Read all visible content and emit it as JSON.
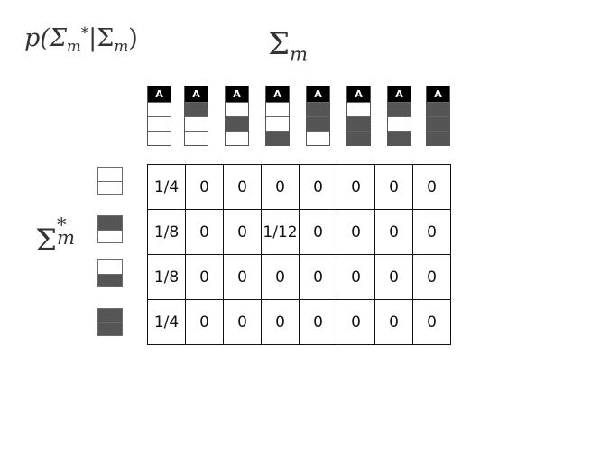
{
  "title": {
    "prefix": "p(Σ",
    "star_sub": "m",
    "star": "*",
    "middle": "|Σ",
    "mid_sub": "m",
    "suffix": ")"
  },
  "top_label": {
    "base": "Σ",
    "sub": "m"
  },
  "side_label": {
    "base": "Σ",
    "sup": "*",
    "sub": "m"
  },
  "column_configs": [
    {
      "cap": "A",
      "slots": [
        false,
        false,
        false
      ]
    },
    {
      "cap": "A",
      "slots": [
        true,
        false,
        false
      ]
    },
    {
      "cap": "A",
      "slots": [
        false,
        true,
        false
      ]
    },
    {
      "cap": "A",
      "slots": [
        false,
        false,
        true
      ]
    },
    {
      "cap": "A",
      "slots": [
        true,
        true,
        false
      ]
    },
    {
      "cap": "A",
      "slots": [
        false,
        true,
        true
      ]
    },
    {
      "cap": "A",
      "slots": [
        true,
        false,
        true
      ]
    },
    {
      "cap": "A",
      "slots": [
        true,
        true,
        true
      ]
    }
  ],
  "row_configs": [
    [
      false,
      false
    ],
    [
      true,
      false
    ],
    [
      false,
      true
    ],
    [
      true,
      true
    ]
  ],
  "table": [
    [
      "1/4",
      "0",
      "0",
      "0",
      "0",
      "0",
      "0",
      "0"
    ],
    [
      "1/8",
      "0",
      "0",
      "1/12",
      "0",
      "0",
      "0",
      "0"
    ],
    [
      "1/8",
      "0",
      "0",
      "0",
      "0",
      "0",
      "0",
      "0"
    ],
    [
      "1/4",
      "0",
      "0",
      "0",
      "0",
      "0",
      "0",
      "0"
    ]
  ],
  "colors": {
    "filled": "#555555",
    "cap": "#000000",
    "border": "#111111"
  }
}
